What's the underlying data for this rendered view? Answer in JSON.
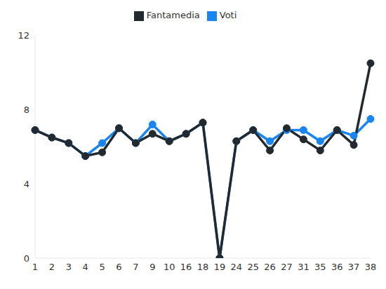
{
  "chart_data": {
    "type": "line",
    "categories": [
      "1",
      "2",
      "3",
      "4",
      "5",
      "6",
      "7",
      "9",
      "10",
      "16",
      "18",
      "19",
      "24",
      "25",
      "26",
      "27",
      "31",
      "35",
      "36",
      "37",
      "38"
    ],
    "series": [
      {
        "name": "Voti",
        "color": "#1a85f0",
        "marker": "circle",
        "values": [
          6.9,
          6.5,
          6.2,
          5.5,
          6.2,
          7.0,
          6.2,
          7.2,
          6.3,
          6.7,
          7.3,
          0,
          6.3,
          6.9,
          6.3,
          6.9,
          6.9,
          6.3,
          6.9,
          6.6,
          7.5
        ]
      },
      {
        "name": "Fantamedia",
        "color": "#222a30",
        "marker": "circle",
        "values": [
          6.9,
          6.5,
          6.2,
          5.5,
          5.7,
          7.0,
          6.2,
          6.7,
          6.3,
          6.7,
          7.3,
          0,
          6.3,
          6.9,
          5.8,
          7.0,
          6.4,
          5.8,
          6.9,
          6.1,
          10.5
        ]
      }
    ],
    "ylim": [
      0,
      12
    ],
    "yticks": [
      0,
      4,
      8,
      12
    ],
    "legend": "top",
    "grid": false
  }
}
